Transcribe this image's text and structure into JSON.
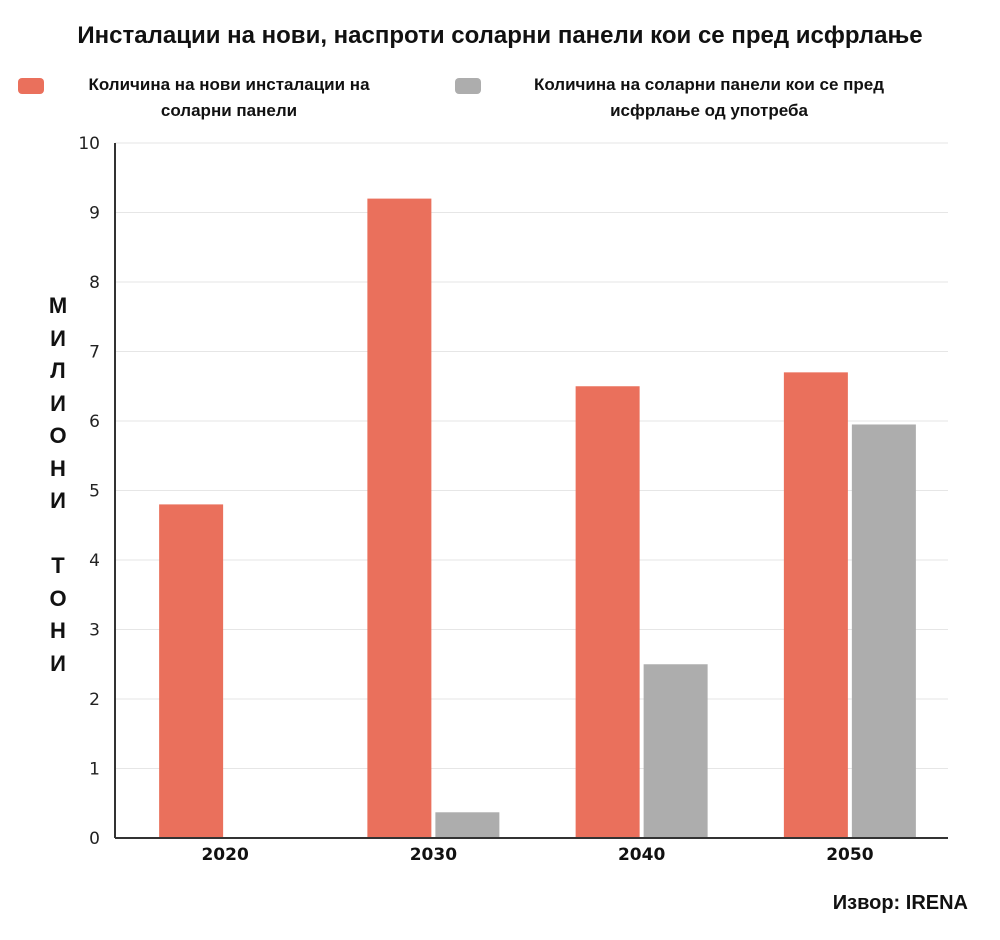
{
  "chart_data": {
    "type": "bar",
    "title": "Инсталации на нови, наспроти соларни панели кои се пред исфрлање",
    "ylabel": "МИЛИОНИ ТОНИ",
    "categories": [
      "2020",
      "2030",
      "2040",
      "2050"
    ],
    "series": [
      {
        "name": "Количина на нови инсталации на соларни панели",
        "color": "#ea705c",
        "values": [
          4.8,
          9.2,
          6.5,
          6.7
        ]
      },
      {
        "name": "Количина на соларни панели кои се пред исфрлање од употреба",
        "color": "#adadad",
        "values": [
          0,
          0.37,
          2.5,
          5.95
        ]
      }
    ],
    "ylim": [
      0,
      10
    ],
    "yticks": [
      0,
      1,
      2,
      3,
      4,
      5,
      6,
      7,
      8,
      9,
      10
    ],
    "grid": true,
    "legend_position": "top"
  },
  "legend": {
    "series_a_line1": "Количина на нови инсталации на",
    "series_a_line2": "соларни панели",
    "series_b_line1": "Количина на соларни панели кои се пред",
    "series_b_line2": "исфрлање од употреба"
  },
  "source": "Извор: IRENA"
}
